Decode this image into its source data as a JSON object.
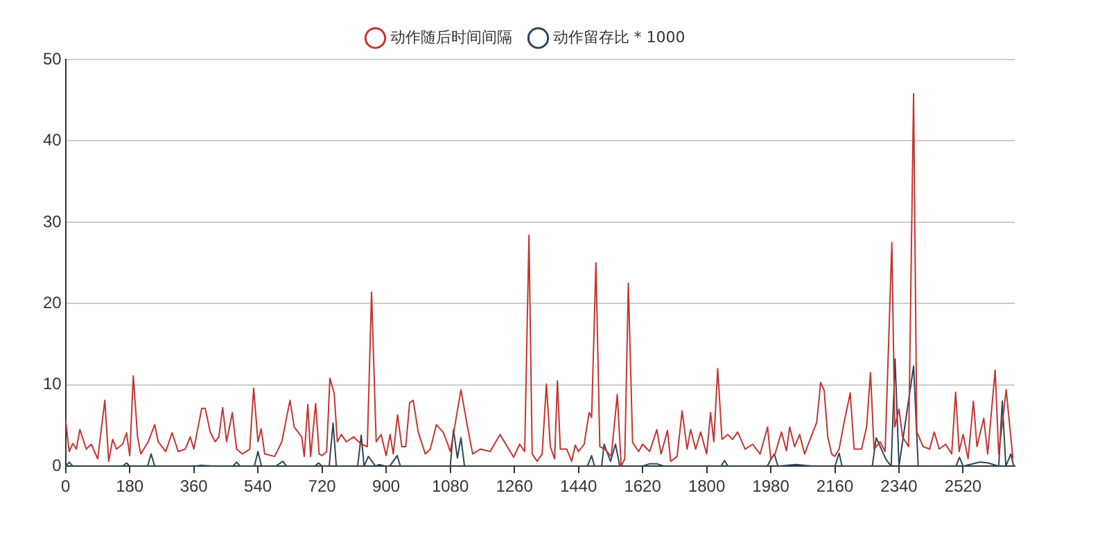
{
  "chart_data": {
    "type": "line",
    "xlim": [
      0,
      2665
    ],
    "xticks": [
      0,
      180,
      360,
      540,
      720,
      900,
      1080,
      1260,
      1440,
      1620,
      1800,
      1980,
      2160,
      2340,
      2520
    ],
    "ylim": [
      0,
      50
    ],
    "yticks": [
      0,
      10,
      20,
      30,
      40,
      50
    ],
    "grid": "y",
    "legend": "top",
    "marker": "none",
    "series": [
      {
        "name": "动作随后时间间隔",
        "color": "#c23531",
        "x": [
          0,
          10,
          20,
          30,
          40,
          58,
          72,
          90,
          110,
          121,
          132,
          143,
          160,
          171,
          180,
          190,
          202,
          211,
          232,
          250,
          260,
          281,
          299,
          316,
          336,
          350,
          360,
          382,
          392,
          406,
          420,
          430,
          441,
          452,
          468,
          480,
          496,
          517,
          528,
          540,
          549,
          559,
          587,
          607,
          630,
          642,
          663,
          670,
          680,
          688,
          702,
          712,
          720,
          733,
          742,
          754,
          763,
          774,
          788,
          809,
          830,
          847,
          859,
          872,
          886,
          900,
          911,
          920,
          932,
          944,
          955,
          966,
          976,
          990,
          1010,
          1024,
          1041,
          1060,
          1073,
          1080,
          1091,
          1110,
          1129,
          1143,
          1164,
          1192,
          1220,
          1240,
          1258,
          1275,
          1289,
          1301,
          1310,
          1324,
          1338,
          1350,
          1361,
          1373,
          1381,
          1389,
          1407,
          1421,
          1431,
          1440,
          1456,
          1470,
          1477,
          1489,
          1500,
          1514,
          1532,
          1549,
          1560,
          1570,
          1580,
          1592,
          1609,
          1620,
          1640,
          1660,
          1672,
          1690,
          1699,
          1717,
          1731,
          1745,
          1755,
          1769,
          1783,
          1800,
          1811,
          1820,
          1831,
          1843,
          1859,
          1873,
          1887,
          1908,
          1929,
          1950,
          1971,
          1980,
          1992,
          2010,
          2024,
          2033,
          2047,
          2061,
          2075,
          2093,
          2109,
          2120,
          2130,
          2140,
          2151,
          2160,
          2172,
          2186,
          2203,
          2214,
          2235,
          2249,
          2260,
          2270,
          2287,
          2301,
          2320,
          2328,
          2340,
          2350,
          2367,
          2381,
          2390,
          2408,
          2426,
          2439,
          2453,
          2471,
          2488,
          2499,
          2509,
          2520,
          2534,
          2549,
          2559,
          2578,
          2589,
          2610,
          2620,
          2641,
          2660
        ],
        "values": [
          5.6,
          1.8,
          2.8,
          2.1,
          4.5,
          2.1,
          2.7,
          0.9,
          8.1,
          0.6,
          3.3,
          2.1,
          2.7,
          4.1,
          1.3,
          11.1,
          3.6,
          1.5,
          3.0,
          5.1,
          3.0,
          1.8,
          4.1,
          1.8,
          2.1,
          3.6,
          2.1,
          7.1,
          7.1,
          4.2,
          3.0,
          3.6,
          7.2,
          3.0,
          6.6,
          2.1,
          1.5,
          2.1,
          9.6,
          3.0,
          4.6,
          1.5,
          1.2,
          3.0,
          8.1,
          4.8,
          3.6,
          1.2,
          7.6,
          1.2,
          7.7,
          1.5,
          1.3,
          1.8,
          10.8,
          9.0,
          3.0,
          3.9,
          3.0,
          3.6,
          2.7,
          2.4,
          21.4,
          3.0,
          3.9,
          1.3,
          3.9,
          1.5,
          6.3,
          2.4,
          2.4,
          7.8,
          8.1,
          4.2,
          1.5,
          2.1,
          5.1,
          4.2,
          2.7,
          1.8,
          4.5,
          9.4,
          4.7,
          1.5,
          2.1,
          1.8,
          3.9,
          2.4,
          1.1,
          2.7,
          1.8,
          28.4,
          1.5,
          0.6,
          1.5,
          10.1,
          2.4,
          0.9,
          10.5,
          2.1,
          2.1,
          0.6,
          2.6,
          1.8,
          2.7,
          6.6,
          6.0,
          25.0,
          2.4,
          2.1,
          1.2,
          8.8,
          0.0,
          0.9,
          22.5,
          2.9,
          1.8,
          2.7,
          1.8,
          4.5,
          1.5,
          4.4,
          0.6,
          1.2,
          6.8,
          2.1,
          4.5,
          2.1,
          4.2,
          1.5,
          6.6,
          3.0,
          12.0,
          3.3,
          3.9,
          3.3,
          4.2,
          2.1,
          2.7,
          1.5,
          4.8,
          0.9,
          1.5,
          4.2,
          1.9,
          4.8,
          2.4,
          3.9,
          1.5,
          3.6,
          5.4,
          10.3,
          9.3,
          3.6,
          1.5,
          1.2,
          2.1,
          5.4,
          9.0,
          2.1,
          2.1,
          4.8,
          11.5,
          2.1,
          3.0,
          1.8,
          27.5,
          4.8,
          7.0,
          3.6,
          2.4,
          45.8,
          4.2,
          2.4,
          2.1,
          4.2,
          2.1,
          2.7,
          1.5,
          9.1,
          1.8,
          3.9,
          0.9,
          8.0,
          2.4,
          5.9,
          1.5,
          11.8,
          1.5,
          9.4,
          0.9
        ]
      },
      {
        "name": "动作留存比 * 1000",
        "color": "#2f4554",
        "x": [
          0,
          10,
          20,
          160,
          171,
          180,
          230,
          240,
          250,
          360,
          380,
          420,
          470,
          480,
          490,
          530,
          540,
          550,
          590,
          600,
          610,
          620,
          700,
          710,
          720,
          740,
          751,
          760,
          820,
          830,
          838,
          850,
          870,
          880,
          900,
          910,
          931,
          940,
          1080,
          1089,
          1100,
          1110,
          1120,
          1260,
          1440,
          1465,
          1477,
          1485,
          1505,
          1512,
          1530,
          1544,
          1556,
          1620,
          1640,
          1660,
          1680,
          1800,
          1840,
          1850,
          1860,
          1970,
          1980,
          1990,
          2000,
          2050,
          2100,
          2160,
          2172,
          2180,
          2265,
          2276,
          2304,
          2318,
          2329,
          2340,
          2381,
          2394,
          2426,
          2500,
          2510,
          2520,
          2567,
          2590,
          2620,
          2630,
          2640,
          2654,
          2662
        ],
        "values": [
          0,
          0.5,
          0,
          0,
          0.4,
          0,
          0,
          1.5,
          0,
          0,
          0.1,
          0,
          0,
          0.5,
          0,
          0,
          1.8,
          0,
          0,
          0.3,
          0.6,
          0,
          0,
          0.4,
          0,
          0,
          5.3,
          0,
          0,
          3.8,
          0,
          1.2,
          0,
          0.2,
          0,
          0,
          1.3,
          0,
          0,
          4.5,
          1.0,
          3.5,
          0,
          0,
          0,
          0,
          1.3,
          0,
          0,
          2.7,
          0.6,
          2.7,
          0,
          0,
          0.3,
          0.3,
          0,
          0,
          0,
          0.7,
          0,
          0,
          0.8,
          1.5,
          0,
          0.2,
          0,
          0,
          1.6,
          0,
          0,
          3.5,
          0.8,
          0,
          13.2,
          0,
          12.3,
          0,
          0,
          0,
          1.1,
          0,
          0.5,
          0.4,
          0,
          8.0,
          0,
          1.5,
          0
        ]
      }
    ]
  }
}
